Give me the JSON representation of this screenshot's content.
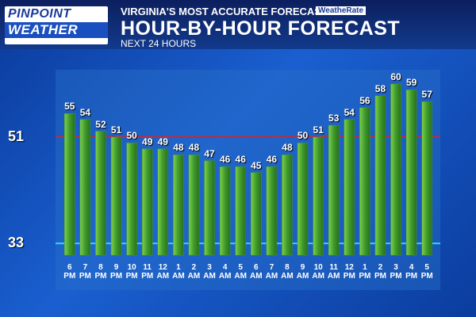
{
  "chart_data": {
    "type": "bar",
    "brand": [
      "PINPOINT",
      "WEATHER"
    ],
    "tagline": "VIRGINIA'S MOST ACCURATE FORECAST",
    "badge": "WeatheRate",
    "title": "HOUR-BY-HOUR FORECAST",
    "subtitle": "NEXT 24 HOURS",
    "categories": [
      "6 PM",
      "7 PM",
      "8 PM",
      "9 PM",
      "10 PM",
      "11 PM",
      "12 AM",
      "1 AM",
      "2 AM",
      "3 AM",
      "4 AM",
      "5 AM",
      "6 AM",
      "7 AM",
      "8 AM",
      "9 AM",
      "10 AM",
      "11 AM",
      "12 PM",
      "1 PM",
      "2 PM",
      "3 PM",
      "4 PM",
      "5 PM"
    ],
    "values": [
      55,
      54,
      52,
      51,
      50,
      49,
      49,
      48,
      48,
      47,
      46,
      46,
      45,
      46,
      48,
      50,
      51,
      53,
      54,
      56,
      58,
      60,
      59,
      57
    ],
    "color": "#3f9a2c",
    "ylim": [
      31,
      62
    ],
    "reference_lines": [
      {
        "value": 51,
        "color": "#e02020"
      },
      {
        "value": 33,
        "color": "#28d8f0"
      }
    ]
  }
}
